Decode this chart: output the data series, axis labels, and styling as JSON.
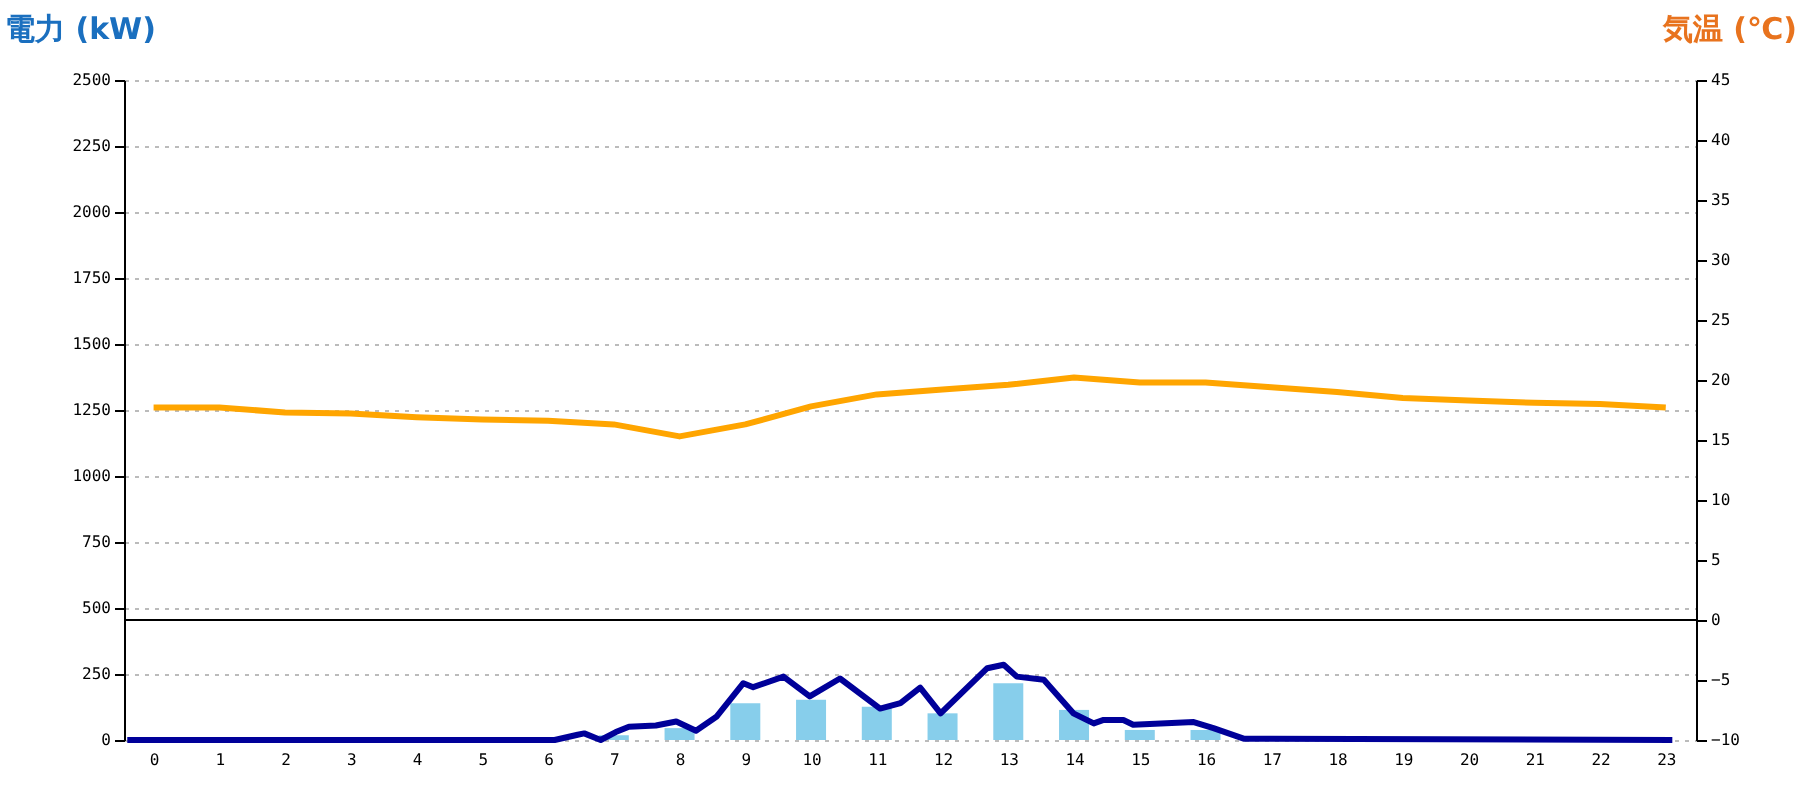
{
  "chart_data": {
    "type": "bar",
    "ylabel": "電力 (kW)",
    "y2label": "気温 (℃)",
    "xlim": [
      -0.45,
      23.46
    ],
    "xticks": [
      0,
      1,
      2,
      3,
      4,
      5,
      6,
      7,
      8,
      9,
      10,
      11,
      12,
      13,
      14,
      15,
      16,
      17,
      18,
      19,
      20,
      21,
      22,
      23
    ],
    "ylim": [
      0,
      2500
    ],
    "yticks": [
      0,
      250,
      500,
      750,
      1000,
      1250,
      1500,
      1750,
      2000,
      2250,
      2500
    ],
    "y2lim": [
      -10,
      45
    ],
    "y2ticks": [
      -10,
      -5,
      0,
      5,
      10,
      15,
      20,
      25,
      30,
      35,
      40,
      45
    ],
    "grid": "y",
    "ref_lines": [
      {
        "axis": "y2",
        "value": 0,
        "color": "#000000"
      }
    ],
    "series": [
      {
        "color": "#87ceeb",
        "x": [
          0,
          1,
          2,
          3,
          4,
          5,
          6,
          7,
          8,
          9,
          10,
          11,
          12,
          13,
          14,
          15,
          16,
          17,
          18,
          19,
          20,
          21,
          22,
          23
        ],
        "values": [
          0,
          0,
          0,
          0,
          0,
          0,
          0,
          18,
          45,
          139,
          152,
          126,
          101,
          215,
          114,
          38,
          38,
          0,
          0,
          0,
          0,
          0,
          0,
          0
        ]
      },
      {
        "type": "line",
        "color": "#000099",
        "x": [
          -0.4,
          6.1,
          6.45,
          6.55,
          6.8,
          7.03,
          7.23,
          7.64,
          7.95,
          8.25,
          8.56,
          8.97,
          9.12,
          9.58,
          9.98,
          10.44,
          11.05,
          11.36,
          11.66,
          11.97,
          12.68,
          12.93,
          13.13,
          13.54,
          13.99,
          14.3,
          14.45,
          14.75,
          14.9,
          15.82,
          16.12,
          16.58,
          23.1
        ],
        "values": [
          0,
          0,
          20,
          25,
          0,
          30,
          50,
          55,
          70,
          35,
          88,
          215,
          200,
          240,
          165,
          233,
          119,
          140,
          198,
          101,
          272,
          285,
          240,
          228,
          101,
          63,
          76,
          76,
          58,
          68,
          45,
          5,
          0
        ]
      },
      {
        "type": "line",
        "axis": "y2",
        "color": "#ffa500",
        "x": [
          0,
          1,
          2,
          3,
          4,
          5,
          6,
          7,
          8,
          9,
          10,
          11,
          12,
          13,
          14,
          15,
          16,
          17,
          18,
          19,
          20,
          21,
          22,
          23
        ],
        "values": [
          17.7,
          17.7,
          17.3,
          17.2,
          16.9,
          16.7,
          16.6,
          16.3,
          15.3,
          16.3,
          17.8,
          18.8,
          19.2,
          19.6,
          20.2,
          19.8,
          19.8,
          19.4,
          19.0,
          18.5,
          18.3,
          18.1,
          18.0,
          17.7
        ]
      }
    ]
  }
}
